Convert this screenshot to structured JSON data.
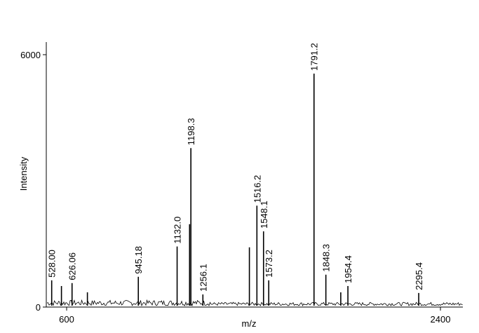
{
  "chart_data": {
    "type": "spectrum",
    "x_label": "m/z",
    "y_label": "Intensity",
    "x": [
      528.0,
      575,
      626.06,
      700,
      945.18,
      1132.0,
      1192,
      1198.3,
      1256.1,
      1480,
      1516.2,
      1548.1,
      1573.2,
      1791.2,
      1848.3,
      1920,
      1954.4,
      2295.4
    ],
    "values": [
      635,
      500,
      570,
      350,
      720,
      1440,
      1970,
      3780,
      300,
      1420,
      2410,
      1800,
      635,
      5550,
      770,
      350,
      500,
      335
    ],
    "peak_labels": [
      "528.00",
      null,
      "626.06",
      null,
      "945.18",
      "1132.0",
      null,
      "1198.3",
      "1256.1",
      null,
      "1516.2",
      "1548.1",
      "1573.2",
      "1791.2",
      "1848.3",
      null,
      "1954.4",
      "2295.4"
    ],
    "color": "#000000",
    "xlim": [
      502,
      2508
    ],
    "ylim": [
      0,
      6300
    ],
    "xticks": [
      600,
      2400
    ],
    "yticks": [
      0,
      6000
    ]
  }
}
